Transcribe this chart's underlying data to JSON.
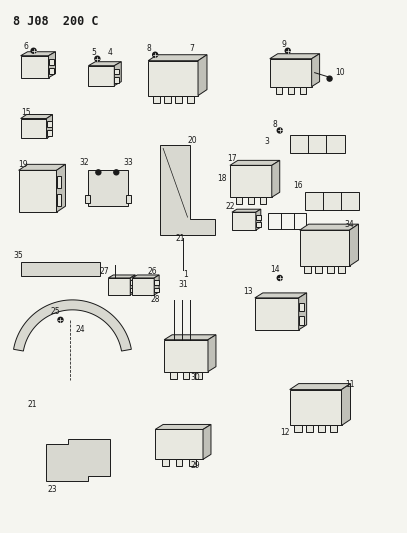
{
  "title": "8 J08  200 C",
  "bg_color": "#f5f5f0",
  "line_color": "#1a1a1a",
  "fig_width": 4.07,
  "fig_height": 5.33,
  "dpi": 100,
  "lw": 0.7,
  "fs_label": 5.5,
  "fs_title": 8.5
}
